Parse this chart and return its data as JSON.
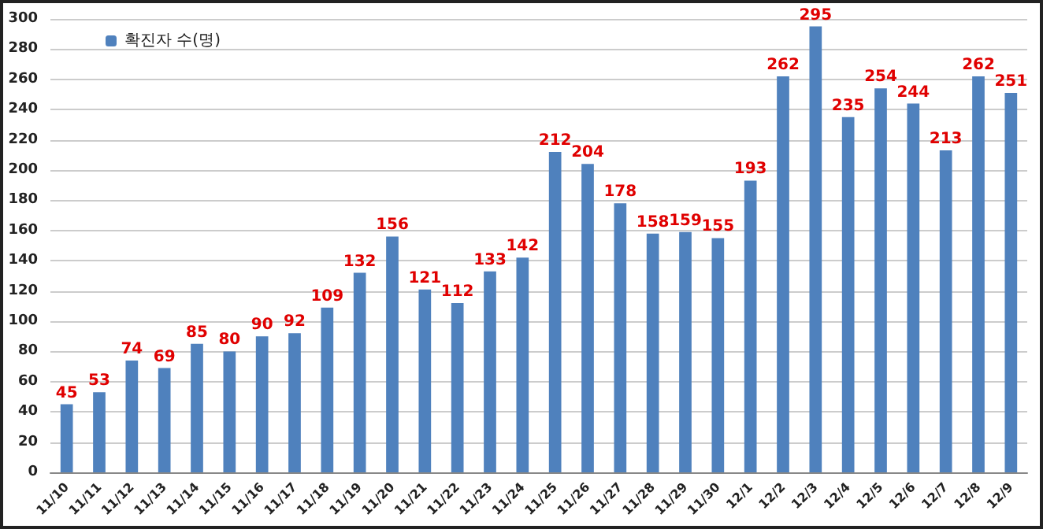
{
  "chart_data": {
    "type": "bar",
    "categories": [
      "11/10",
      "11/11",
      "11/12",
      "11/13",
      "11/14",
      "11/15",
      "11/16",
      "11/17",
      "11/18",
      "11/19",
      "11/20",
      "11/21",
      "11/22",
      "11/23",
      "11/24",
      "11/25",
      "11/26",
      "11/27",
      "11/28",
      "11/29",
      "11/30",
      "12/1",
      "12/2",
      "12/3",
      "12/4",
      "12/5",
      "12/6",
      "12/7",
      "12/8",
      "12/9"
    ],
    "series": [
      {
        "name": "확진자 수(명)",
        "color": "#4f81bd",
        "values": [
          45,
          53,
          74,
          69,
          85,
          80,
          90,
          92,
          109,
          132,
          156,
          121,
          112,
          133,
          142,
          212,
          204,
          178,
          158,
          159,
          155,
          193,
          262,
          295,
          235,
          254,
          244,
          213,
          262,
          251
        ]
      }
    ],
    "ylim": [
      0,
      300
    ],
    "yticks": [
      0,
      20,
      40,
      60,
      80,
      100,
      120,
      140,
      160,
      180,
      200,
      220,
      240,
      260,
      280,
      300
    ],
    "grid": "y",
    "legend": "top left",
    "data_labels": true
  }
}
